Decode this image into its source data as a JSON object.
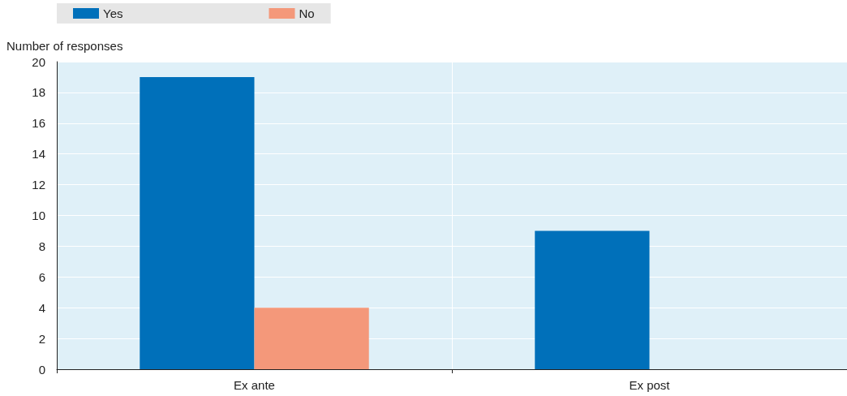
{
  "chart_data": {
    "type": "bar",
    "ylabel": "Number of responses",
    "categories": [
      "Ex ante",
      "Ex post"
    ],
    "series": [
      {
        "name": "Yes",
        "color": "#0070ba",
        "values": [
          19,
          9
        ]
      },
      {
        "name": "No",
        "color": "#f4987a",
        "values": [
          4,
          0
        ]
      }
    ],
    "ylim": [
      0,
      20
    ],
    "yticks": [
      0,
      2,
      4,
      6,
      8,
      10,
      12,
      14,
      16,
      18,
      20
    ],
    "grid": "y",
    "legend": "top"
  }
}
